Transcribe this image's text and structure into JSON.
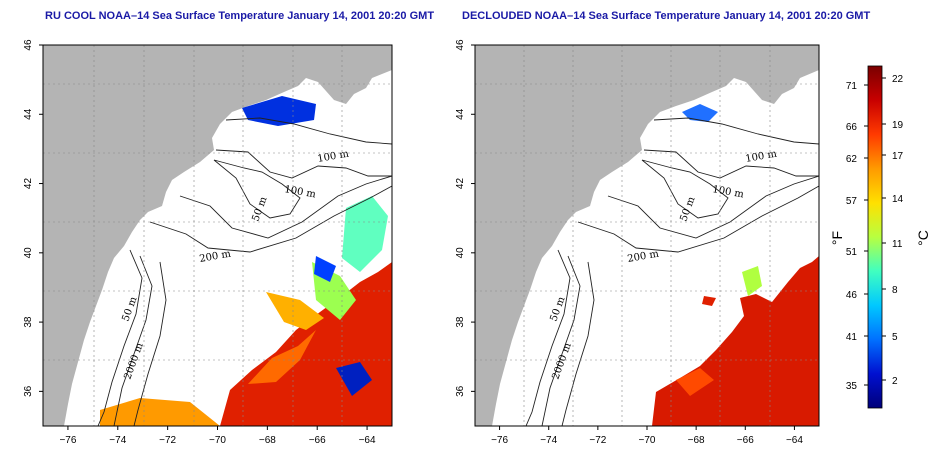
{
  "panels": [
    {
      "title": "RU COOL NOAA–14 Sea Surface Temperature January 14, 2001 20:20 GMT",
      "contour_labels": [
        "100 m",
        "100 m",
        "50 m",
        "200 m",
        "50 m",
        "2000 m"
      ]
    },
    {
      "title": "DECLOUDED NOAA–14 Sea Surface Temperature January 14, 2001 20:20 GMT",
      "contour_labels": [
        "100 m",
        "100 m",
        "50 m",
        "200 m",
        "50 m",
        "2000 m"
      ]
    }
  ],
  "axes": {
    "lon_range": [
      -77,
      -63
    ],
    "lat_range": [
      35,
      46
    ],
    "x_ticks": [
      "−76",
      "−74",
      "−72",
      "−70",
      "−68",
      "−66",
      "−64"
    ],
    "y_ticks": [
      "36",
      "38",
      "40",
      "42",
      "44",
      "46"
    ]
  },
  "colorbar": {
    "fahrenheit_label": "°F",
    "celsius_label": "°C",
    "fahrenheit_ticks": [
      "71",
      "66",
      "62",
      "57",
      "51",
      "46",
      "41",
      "35"
    ],
    "celsius_ticks": [
      "22",
      "19",
      "17",
      "14",
      "11",
      "8",
      "5",
      "2"
    ],
    "colors": [
      "#7a0000",
      "#c80000",
      "#ff3a00",
      "#ff9a00",
      "#ffe000",
      "#b8ff40",
      "#40ffc0",
      "#00c8ff",
      "#0070ff",
      "#0010d0",
      "#00007a"
    ]
  },
  "colors": {
    "land": "#b4b4b4",
    "ocean": "#ffffff",
    "title": "#1a1aa6"
  }
}
